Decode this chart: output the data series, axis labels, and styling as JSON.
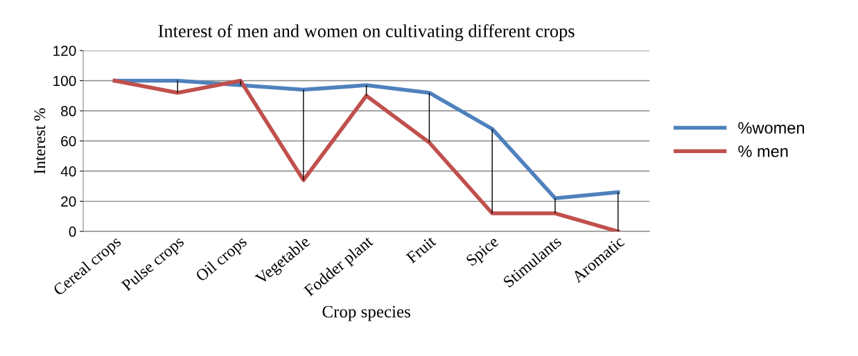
{
  "chart_data": {
    "type": "line",
    "title": "Interest of men and women on cultivating different crops",
    "xlabel": "Crop species",
    "ylabel": "Interest %",
    "categories": [
      "Cereal crops",
      "Pulse crops",
      "Oil crops",
      "Vegetable",
      "Fodder plant",
      "Fruit",
      "Spice",
      "Stimulants",
      "Aromatic"
    ],
    "series": [
      {
        "name": "%women",
        "color": "#4f81bd",
        "values": [
          100,
          100,
          97,
          94,
          97,
          92,
          68,
          22,
          26
        ]
      },
      {
        "name": "% men",
        "color": "#c0504d",
        "values": [
          100,
          92,
          100,
          34,
          90,
          59,
          12,
          12,
          0
        ],
        "errors": [
          null,
          [
            92,
            100
          ],
          [
            97,
            100
          ],
          [
            34,
            94
          ],
          [
            90,
            97
          ],
          [
            59,
            92
          ],
          [
            12,
            68
          ],
          [
            12,
            22
          ],
          [
            0,
            26
          ]
        ]
      }
    ],
    "ylim": [
      0,
      120
    ],
    "yticks": [
      0,
      20,
      40,
      60,
      80,
      100,
      120
    ],
    "grid": "y",
    "legend": "right",
    "marker": "none",
    "line_style": "solid"
  }
}
